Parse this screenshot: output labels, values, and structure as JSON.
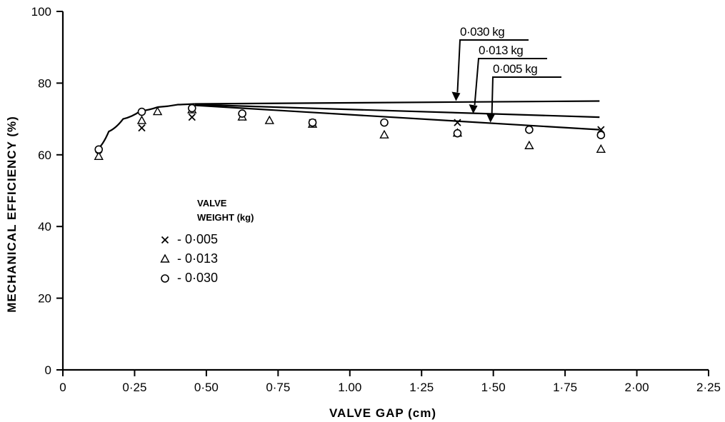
{
  "chart_data": {
    "type": "scatter",
    "title": "",
    "xlabel": "VALVE GAP (cm)",
    "ylabel": "MECHANICAL EFFICIENCY (%)",
    "xlim": [
      0,
      2.25
    ],
    "ylim": [
      0,
      100
    ],
    "x_ticks": [
      0,
      0.25,
      0.5,
      0.75,
      1.0,
      1.25,
      1.5,
      1.75,
      2.0,
      2.25
    ],
    "x_tick_labels": [
      "0",
      "0·25",
      "0·50",
      "0·75",
      "1.00",
      "1·25",
      "1·50",
      "1·75",
      "2·00",
      "2·25"
    ],
    "y_ticks": [
      0,
      20,
      40,
      60,
      80,
      100
    ],
    "y_tick_labels": [
      "0",
      "20",
      "40",
      "60",
      "80",
      "100"
    ],
    "legend": {
      "title_line1": "VALVE",
      "title_line2": "WEIGHT (kg)",
      "position": "center-left"
    },
    "series": [
      {
        "name": "0·005",
        "legend_label": "- 0·005",
        "marker": "x",
        "x": [
          0.125,
          0.275,
          0.45,
          0.625,
          0.87,
          1.375,
          1.875
        ],
        "y": [
          60.0,
          67.5,
          70.5,
          70.5,
          69.0,
          69.0,
          67.0
        ]
      },
      {
        "name": "0·013",
        "legend_label": "- 0·013",
        "marker": "triangle",
        "x": [
          0.125,
          0.275,
          0.33,
          0.45,
          0.625,
          0.72,
          0.87,
          1.12,
          1.375,
          1.625,
          1.875
        ],
        "y": [
          59.5,
          69.5,
          72.0,
          72.5,
          70.5,
          69.5,
          68.5,
          65.5,
          66.0,
          62.5,
          61.5
        ]
      },
      {
        "name": "0·030",
        "legend_label": "- 0·030",
        "marker": "circle",
        "x": [
          0.125,
          0.275,
          0.45,
          0.625,
          0.87,
          1.12,
          1.375,
          1.625,
          1.875
        ],
        "y": [
          61.5,
          72.0,
          73.0,
          71.5,
          69.0,
          69.0,
          66.0,
          67.0,
          65.5
        ]
      }
    ],
    "fit_curve": {
      "rising_x": [
        0.12,
        0.16,
        0.21,
        0.27,
        0.33,
        0.4,
        0.46
      ],
      "rising_y": [
        61.5,
        66.5,
        70.0,
        72.2,
        73.3,
        74.0,
        74.2
      ],
      "tails": [
        {
          "label": "0·030 kg",
          "x": [
            0.46,
            1.87
          ],
          "y": [
            74.2,
            75.0
          ],
          "arrow_x": 1.37,
          "arrow_y": 75.0
        },
        {
          "label": "0·013 kg",
          "x": [
            0.46,
            1.87
          ],
          "y": [
            74.0,
            70.5
          ],
          "arrow_x": 1.43,
          "arrow_y": 71.5
        },
        {
          "label": "0·005 kg",
          "x": [
            0.46,
            1.87
          ],
          "y": [
            73.8,
            67.0
          ],
          "arrow_x": 1.49,
          "arrow_y": 69.0
        }
      ]
    }
  }
}
